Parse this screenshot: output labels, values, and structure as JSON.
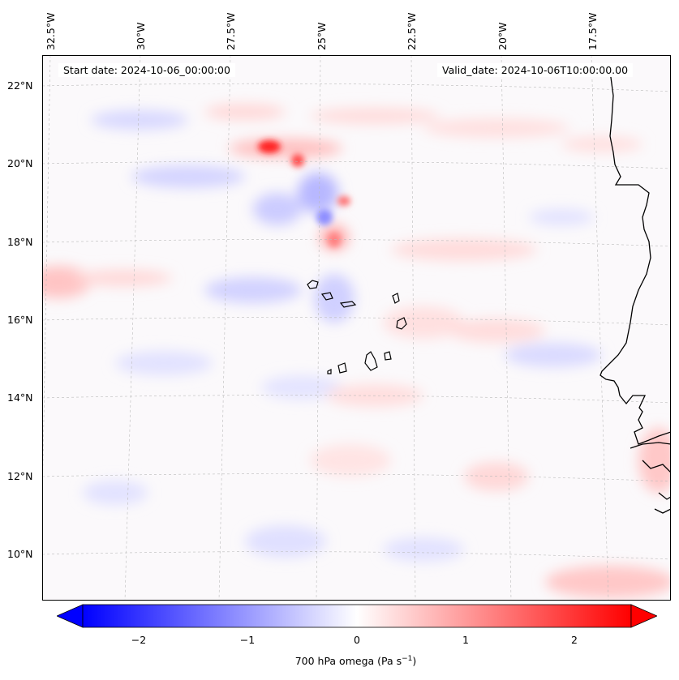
{
  "header": {
    "start_date": "Start date: 2024-10-06_00:00:00",
    "valid_date": "Valid_date: 2024-10-06T10:00:00.00"
  },
  "axes": {
    "lon_labels": [
      "32.5°W",
      "30°W",
      "27.5°W",
      "25°W",
      "22.5°W",
      "20°W",
      "17.5°W"
    ],
    "lat_labels": [
      "22°N",
      "20°N",
      "18°N",
      "16°N",
      "14°N",
      "12°N",
      "10°N"
    ]
  },
  "colorbar": {
    "ticks": [
      "−2",
      "−1",
      "0",
      "1",
      "2"
    ],
    "label_prefix": "700 hPa omega (Pa s",
    "label_exp": "−1",
    "label_suffix": ")",
    "colors": {
      "min": "#0000ff",
      "mid": "#ffffff",
      "max": "#ff0000"
    }
  },
  "colors": {
    "coastline": "#000000",
    "gridline": "#bbbbbb",
    "background": "#fbf9fb"
  }
}
